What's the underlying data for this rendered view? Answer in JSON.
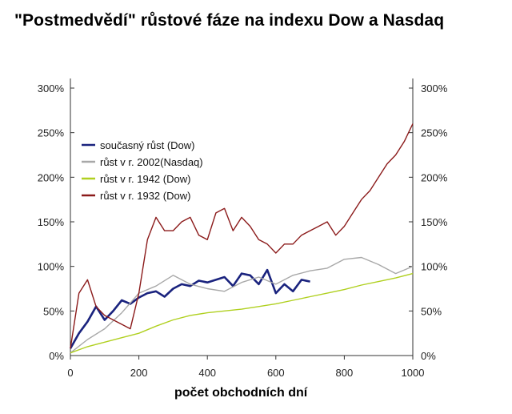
{
  "title": "\"Postmedvědí\" růstové fáze na indexu Dow a Nasdaq",
  "chart_data": {
    "type": "line",
    "title": "\"Postmedvědí\" růstové fáze na indexu Dow a Nasdaq",
    "xlabel": "počet obchodních dní",
    "ylabel": "",
    "xlim": [
      0,
      1000
    ],
    "ylim": [
      0,
      300
    ],
    "x_ticks": [
      0,
      200,
      400,
      600,
      800,
      1000
    ],
    "x_tick_labels": [
      "0",
      "200",
      "400",
      "600",
      "800",
      "1000"
    ],
    "y_ticks": [
      0,
      50,
      100,
      150,
      200,
      250,
      300
    ],
    "y_tick_labels": [
      "0%",
      "50%",
      "100%",
      "150%",
      "200%",
      "250%",
      "300%"
    ],
    "legend_position": "top-left",
    "grid": false,
    "series": [
      {
        "name": "současný růst (Dow)",
        "color": "#1a237e",
        "x": [
          0,
          25,
          50,
          75,
          100,
          125,
          150,
          175,
          200,
          225,
          250,
          275,
          300,
          325,
          350,
          375,
          400,
          425,
          450,
          475,
          500,
          525,
          550,
          575,
          600,
          625,
          650,
          675,
          700
        ],
        "y": [
          8,
          25,
          38,
          55,
          40,
          50,
          62,
          58,
          65,
          70,
          72,
          66,
          75,
          80,
          78,
          84,
          82,
          85,
          88,
          78,
          92,
          90,
          80,
          96,
          70,
          80,
          72,
          85,
          83
        ]
      },
      {
        "name": "růst v r. 2002(Nasdaq)",
        "color": "#a8a8a8",
        "x": [
          0,
          50,
          100,
          150,
          200,
          250,
          300,
          350,
          400,
          450,
          500,
          550,
          600,
          650,
          700,
          750,
          800,
          850,
          900,
          950,
          1000
        ],
        "y": [
          3,
          18,
          30,
          48,
          70,
          78,
          90,
          80,
          75,
          72,
          82,
          88,
          80,
          90,
          95,
          98,
          108,
          110,
          102,
          92,
          100
        ]
      },
      {
        "name": "růst v r. 1942 (Dow)",
        "color": "#b0d020",
        "x": [
          0,
          50,
          100,
          150,
          200,
          250,
          300,
          350,
          400,
          450,
          500,
          550,
          600,
          650,
          700,
          750,
          800,
          850,
          900,
          950,
          1000
        ],
        "y": [
          3,
          10,
          15,
          20,
          25,
          33,
          40,
          45,
          48,
          50,
          52,
          55,
          58,
          62,
          66,
          70,
          74,
          79,
          83,
          87,
          92
        ]
      },
      {
        "name": "růst v r. 1932 (Dow)",
        "color": "#8b1a1a",
        "x": [
          0,
          25,
          50,
          75,
          100,
          125,
          150,
          175,
          200,
          225,
          250,
          275,
          300,
          325,
          350,
          375,
          400,
          425,
          450,
          475,
          500,
          525,
          550,
          575,
          600,
          625,
          650,
          675,
          700,
          725,
          750,
          775,
          800,
          825,
          850,
          875,
          900,
          925,
          950,
          975,
          1000
        ],
        "y": [
          8,
          70,
          85,
          55,
          45,
          40,
          35,
          30,
          70,
          130,
          155,
          140,
          140,
          150,
          155,
          135,
          130,
          160,
          165,
          140,
          155,
          145,
          130,
          125,
          115,
          125,
          125,
          135,
          140,
          145,
          150,
          135,
          145,
          160,
          175,
          185,
          200,
          215,
          225,
          240,
          260
        ]
      }
    ]
  }
}
